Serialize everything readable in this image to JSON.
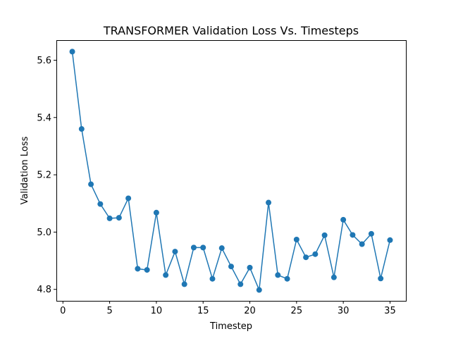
{
  "chart_data": {
    "type": "line",
    "title": "TRANSFORMER Validation Loss Vs. Timesteps",
    "xlabel": "Timestep",
    "ylabel": "Validation Loss",
    "xlim": [
      -0.7,
      36.7
    ],
    "ylim": [
      4.76,
      5.67
    ],
    "xticks": [
      0,
      5,
      10,
      15,
      20,
      25,
      30,
      35
    ],
    "xtick_labels": [
      "0",
      "5",
      "10",
      "15",
      "20",
      "25",
      "30",
      "35"
    ],
    "yticks": [
      4.8,
      5.0,
      5.2,
      5.4,
      5.6
    ],
    "ytick_labels": [
      "4.8",
      "5.0",
      "5.2",
      "5.4",
      "5.6"
    ],
    "grid": false,
    "series": [
      {
        "color": "#1f77b4",
        "marker": "circle",
        "x": [
          1,
          2,
          3,
          4,
          5,
          6,
          7,
          8,
          9,
          10,
          11,
          12,
          13,
          14,
          15,
          16,
          17,
          18,
          19,
          20,
          21,
          22,
          23,
          24,
          25,
          26,
          27,
          28,
          29,
          30,
          31,
          32,
          33,
          34,
          35
        ],
        "y": [
          5.63,
          5.36,
          5.167,
          5.098,
          5.048,
          5.05,
          5.118,
          4.872,
          4.868,
          5.068,
          4.85,
          4.932,
          4.818,
          4.946,
          4.946,
          4.837,
          4.944,
          4.88,
          4.818,
          4.876,
          4.798,
          5.103,
          4.85,
          4.837,
          4.974,
          4.912,
          4.923,
          4.989,
          4.842,
          5.043,
          4.99,
          4.958,
          4.994,
          4.838,
          4.972
        ]
      }
    ]
  }
}
